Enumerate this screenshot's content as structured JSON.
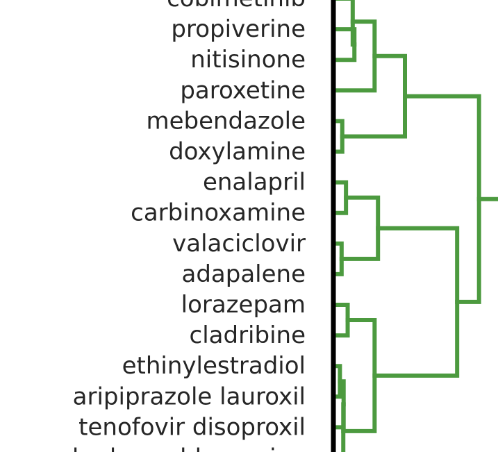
{
  "chart_data": {
    "type": "dendrogram",
    "orientation": "leaves-left",
    "colors": {
      "link": "#4c9a3f",
      "axis": "#000000",
      "text": "#262626"
    },
    "leaves": [
      "cobimetinib",
      "propiverine",
      "nitisinone",
      "paroxetine",
      "mebendazole",
      "doxylamine",
      "enalapril",
      "carbinoxamine",
      "valaciclovir",
      "adapalene",
      "lorazepam",
      "cladribine",
      "ethinylestradiol",
      "aripiprazole lauroxil",
      "tenofovir disoproxil",
      "hydroxychloroquine"
    ],
    "merges": [
      {
        "id": "n1",
        "children": [
          "L1",
          "L2"
        ],
        "height": 0.5
      },
      {
        "id": "n2",
        "children": [
          "L0",
          "n1"
        ],
        "height": 0.45
      },
      {
        "id": "n3",
        "children": [
          "n2",
          "L3"
        ],
        "height": 1.1
      },
      {
        "id": "n4",
        "children": [
          "L4",
          "L5"
        ],
        "height": 0.14
      },
      {
        "id": "n5",
        "children": [
          "n3",
          "n4"
        ],
        "height": 2.0
      },
      {
        "id": "n6",
        "children": [
          "L6",
          "L7"
        ],
        "height": 0.25
      },
      {
        "id": "n7",
        "children": [
          "L8",
          "L9"
        ],
        "height": 0.12
      },
      {
        "id": "n8",
        "children": [
          "n6",
          "n7"
        ],
        "height": 1.2
      },
      {
        "id": "n9",
        "children": [
          "L10",
          "L11"
        ],
        "height": 0.3
      },
      {
        "id": "n10",
        "children": [
          "L12",
          "L13"
        ],
        "height": 0.07
      },
      {
        "id": "n11",
        "children": [
          "n10",
          "L14"
        ],
        "height": 0.18
      },
      {
        "id": "n12",
        "children": [
          "n11",
          "L15"
        ],
        "height": 0.17
      },
      {
        "id": "n13",
        "children": [
          "n9",
          "n12"
        ],
        "height": 1.1
      },
      {
        "id": "n14",
        "children": [
          "n8",
          "n13"
        ],
        "height": 3.55
      },
      {
        "id": "n15",
        "children": [
          "n5",
          "n14"
        ],
        "height": 4.2
      }
    ]
  }
}
